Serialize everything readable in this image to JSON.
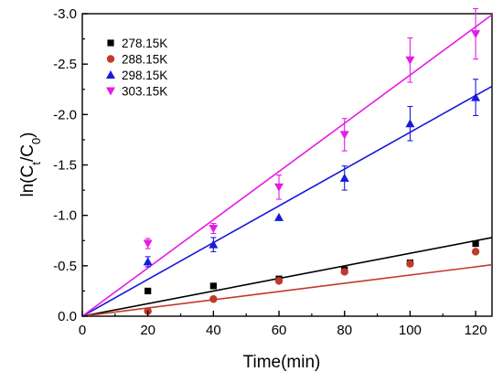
{
  "chart_data": {
    "type": "scatter",
    "xlabel": "Time(min)",
    "ylabel": {
      "prefix": "ln(C",
      "sub1": "t",
      "mid": "/C",
      "sub2": "0",
      "suffix": ")"
    },
    "xlim": [
      0,
      125
    ],
    "ylim": [
      0.0,
      -3.0
    ],
    "y_axis_inverted": true,
    "x_ticks": [
      "0",
      "20",
      "40",
      "60",
      "80",
      "100",
      "120"
    ],
    "x_tick_values": [
      0,
      20,
      40,
      60,
      80,
      100,
      120
    ],
    "y_ticks": [
      "0.0",
      "-0.5",
      "-1.0",
      "-1.5",
      "-2.0",
      "-2.5",
      "-3.0"
    ],
    "y_tick_values": [
      0.0,
      -0.5,
      -1.0,
      -1.5,
      -2.0,
      -2.5,
      -3.0
    ],
    "legend_position": "top-left",
    "grid": false,
    "series": [
      {
        "name": "278.15K",
        "color": "#000000",
        "marker": "square",
        "x": [
          20,
          40,
          60,
          80,
          100,
          120
        ],
        "y": [
          -0.25,
          -0.3,
          -0.37,
          -0.46,
          -0.53,
          -0.72
        ],
        "fit": {
          "x": [
            0,
            125
          ],
          "y": [
            0.0,
            -0.78
          ]
        }
      },
      {
        "name": "288.15K",
        "color": "#c0392b",
        "marker": "circle",
        "x": [
          20,
          40,
          60,
          80,
          100,
          120
        ],
        "y": [
          -0.05,
          -0.17,
          -0.35,
          -0.44,
          -0.52,
          -0.64
        ],
        "fit": {
          "x": [
            0,
            125
          ],
          "y": [
            0.0,
            -0.51
          ]
        }
      },
      {
        "name": "298.15K",
        "color": "#1a1adc",
        "marker": "triangle-up",
        "x": [
          20,
          40,
          60,
          80,
          100,
          120
        ],
        "y": [
          -0.54,
          -0.71,
          -0.98,
          -1.37,
          -1.91,
          -2.17
        ],
        "yerr": [
          0.05,
          0.07,
          0.0,
          0.12,
          0.17,
          0.18
        ],
        "fit": {
          "x": [
            0,
            125
          ],
          "y": [
            0.0,
            -2.28
          ]
        }
      },
      {
        "name": "303.15K",
        "color": "#e61ce6",
        "marker": "triangle-down",
        "x": [
          20,
          40,
          60,
          80,
          100,
          120
        ],
        "y": [
          -0.72,
          -0.87,
          -1.28,
          -1.8,
          -2.54,
          -2.8
        ],
        "yerr": [
          0.05,
          0.05,
          0.12,
          0.16,
          0.22,
          0.25
        ],
        "fit": {
          "x": [
            0,
            125
          ],
          "y": [
            0.0,
            -2.99
          ]
        }
      }
    ]
  }
}
